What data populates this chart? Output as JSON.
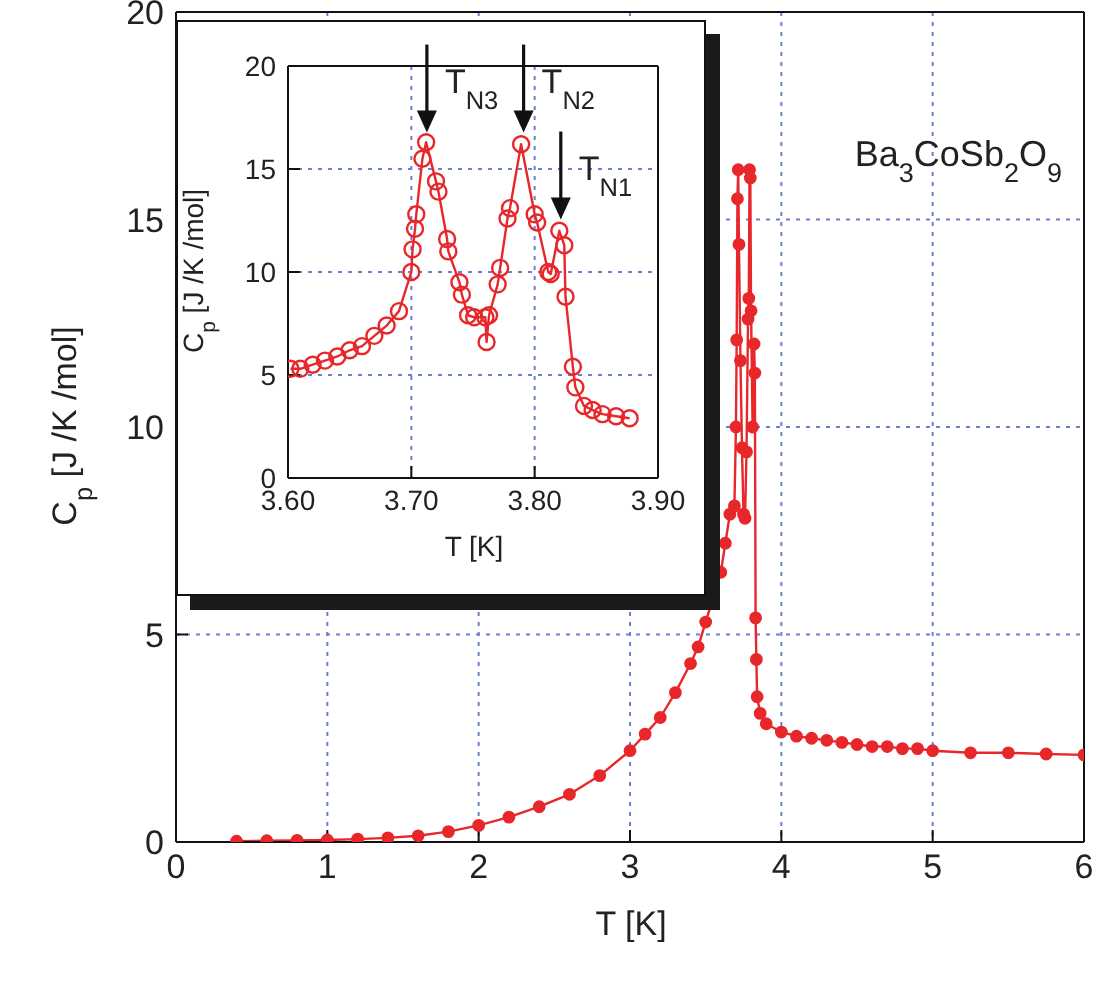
{
  "chart_data": [
    {
      "type": "line",
      "xlabel": "T [K]",
      "ylabel": "C$_{p}$ [J /K /mol]",
      "marker": "circle",
      "grid": true,
      "xlim": [
        0,
        6
      ],
      "xticks": [
        0,
        1,
        2,
        3,
        4,
        5,
        6
      ],
      "ylim": [
        0,
        20
      ],
      "yticks": [
        0,
        5,
        10,
        15,
        20
      ],
      "annotations": [
        "Ba$_{3}$CoSb$_{2}$O$_{9}$"
      ],
      "series": [
        {
          "color": "#e8272a",
          "x": [
            0.4,
            0.6,
            0.8,
            1.0,
            1.2,
            1.4,
            1.6,
            1.8,
            2.0,
            2.2,
            2.4,
            2.6,
            2.8,
            3.0,
            3.1,
            3.2,
            3.3,
            3.4,
            3.45,
            3.5,
            3.6,
            3.63,
            3.66,
            3.69,
            3.7,
            3.705,
            3.71,
            3.715,
            3.72,
            3.73,
            3.74,
            3.75,
            3.76,
            3.77,
            3.78,
            3.785,
            3.79,
            3.795,
            3.8,
            3.81,
            3.82,
            3.825,
            3.83,
            3.835,
            3.84,
            3.86,
            3.9,
            4.0,
            4.1,
            4.2,
            4.3,
            4.4,
            4.5,
            4.6,
            4.7,
            4.8,
            4.9,
            5.0,
            5.25,
            5.5,
            5.75,
            6.0
          ],
          "values": [
            0.02,
            0.03,
            0.04,
            0.05,
            0.07,
            0.1,
            0.15,
            0.25,
            0.4,
            0.6,
            0.85,
            1.15,
            1.6,
            2.2,
            2.6,
            3.0,
            3.6,
            4.3,
            4.7,
            5.3,
            6.5,
            7.2,
            7.9,
            8.1,
            10.0,
            12.1,
            15.5,
            16.2,
            14.4,
            11.6,
            9.5,
            7.9,
            7.8,
            9.4,
            12.6,
            13.1,
            16.2,
            16.0,
            12.8,
            10.0,
            12.0,
            11.3,
            5.4,
            4.4,
            3.5,
            3.1,
            2.85,
            2.65,
            2.55,
            2.5,
            2.45,
            2.4,
            2.35,
            2.3,
            2.3,
            2.25,
            2.25,
            2.2,
            2.15,
            2.15,
            2.12,
            2.1
          ]
        }
      ]
    },
    {
      "type": "line",
      "xlabel": "T [K]",
      "ylabel": "C$_{p}$ [J /K /mol]",
      "marker": "circle",
      "grid": true,
      "xlim": [
        3.6,
        3.9
      ],
      "xticks": [
        {
          "value": 3.6,
          "label": "3.60"
        },
        {
          "value": 3.7,
          "label": "3.70"
        },
        {
          "value": 3.8,
          "label": "3.80"
        },
        {
          "value": 3.9,
          "label": "3.90"
        }
      ],
      "ylim": [
        0,
        20
      ],
      "yticks": [
        0,
        5,
        10,
        15,
        20
      ],
      "annotations": [
        {
          "text": "T$_{N3}$",
          "x": 3.712,
          "y": 16.3
        },
        {
          "text": "T$_{N2}$",
          "x": 3.79,
          "y": 16.3
        },
        {
          "text": "T$_{N1}$",
          "x": 3.82,
          "y": 12.1
        }
      ],
      "series": [
        {
          "color": "#e8272a",
          "x": [
            3.602,
            3.61,
            3.62,
            3.63,
            3.64,
            3.65,
            3.66,
            3.67,
            3.68,
            3.69,
            3.7,
            3.701,
            3.703,
            3.704,
            3.709,
            3.712,
            3.72,
            3.722,
            3.729,
            3.73,
            3.739,
            3.741,
            3.746,
            3.751,
            3.76,
            3.761,
            3.763,
            3.77,
            3.772,
            3.778,
            3.78,
            3.789,
            3.8,
            3.802,
            3.811,
            3.813,
            3.82,
            3.824,
            3.825,
            3.831,
            3.833,
            3.84,
            3.847,
            3.855,
            3.866,
            3.877
          ],
          "values": [
            5.3,
            5.3,
            5.5,
            5.7,
            5.9,
            6.2,
            6.4,
            6.9,
            7.4,
            8.1,
            10.0,
            11.1,
            12.1,
            12.8,
            15.5,
            16.3,
            14.4,
            13.9,
            11.6,
            11.0,
            9.5,
            8.9,
            7.9,
            7.8,
            7.8,
            6.6,
            7.9,
            9.4,
            10.2,
            12.6,
            13.1,
            16.2,
            12.8,
            12.4,
            10.0,
            9.9,
            12.0,
            11.3,
            8.8,
            5.4,
            4.4,
            3.5,
            3.3,
            3.1,
            3.0,
            2.9
          ]
        }
      ]
    }
  ]
}
